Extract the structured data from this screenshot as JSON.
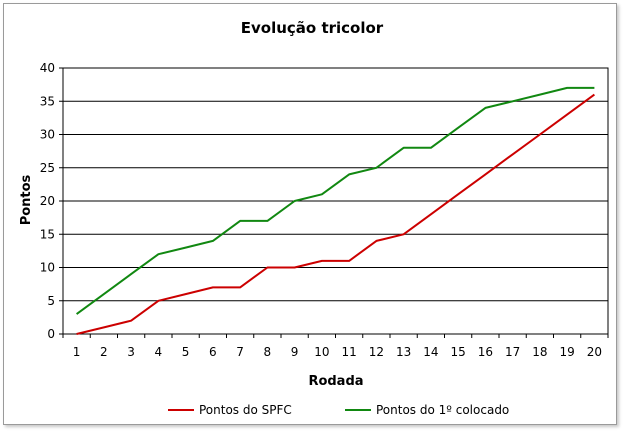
{
  "chart_data": {
    "type": "line",
    "title": "Evolução tricolor",
    "xlabel": "Rodada",
    "ylabel": "Pontos",
    "x": [
      1,
      2,
      3,
      4,
      5,
      6,
      7,
      8,
      9,
      10,
      11,
      12,
      13,
      14,
      15,
      16,
      17,
      18,
      19,
      20
    ],
    "ylim": [
      0,
      40
    ],
    "yticks": [
      0,
      5,
      10,
      15,
      20,
      25,
      30,
      35,
      40
    ],
    "grid": "horizontal",
    "legend_position": "bottom",
    "series": [
      {
        "name": "Pontos do SPFC",
        "color": "#cc0000",
        "values": [
          0,
          1,
          2,
          5,
          6,
          7,
          7,
          10,
          10,
          11,
          11,
          14,
          15,
          18,
          21,
          24,
          27,
          30,
          33,
          36
        ]
      },
      {
        "name": "Pontos do 1º colocado",
        "color": "#118811",
        "values": [
          3,
          6,
          9,
          12,
          13,
          14,
          17,
          17,
          20,
          21,
          24,
          25,
          28,
          28,
          31,
          34,
          35,
          36,
          37,
          37
        ]
      }
    ]
  }
}
